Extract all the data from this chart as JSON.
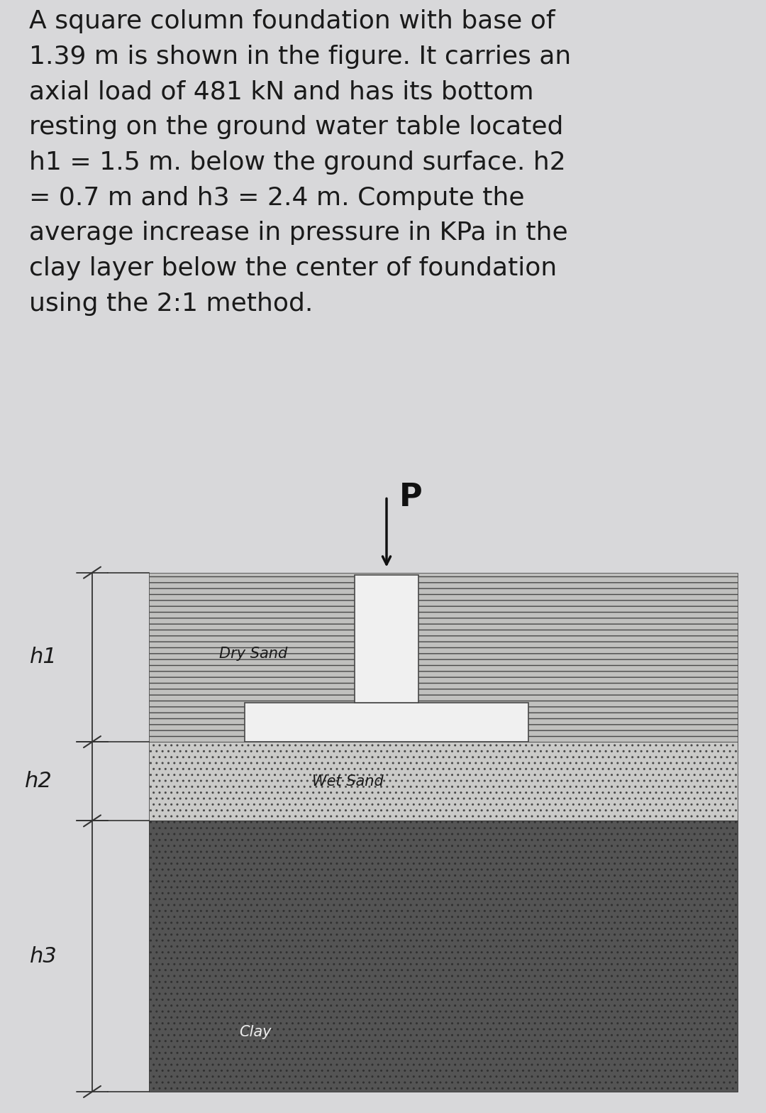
{
  "problem_text": "A square column foundation with base of\n1.39 m is shown in the figure. It carries an\naxial load of 481 kN and has its bottom\nresting on the ground water table located\nh1 = 1.5 m. below the ground surface. h2\n= 0.7 m and h3 = 2.4 m. Compute the\naverage increase in pressure in KPa in the\nclay layer below the center of foundation\nusing the 2:1 method.",
  "bg_color": "#d8d8da",
  "text_color": "#1a1a1a",
  "text_fontsize": 26,
  "dry_sand_facecolor": "#c0c0be",
  "wet_sand_facecolor": "#cacac8",
  "clay_facecolor": "#545454",
  "foundation_facecolor": "#f0f0f0",
  "border_color": "#484848",
  "h1_label": "h1",
  "h2_label": "h2",
  "h3_label": "h3",
  "P_label": "P",
  "dry_sand_label": "Dry Sand",
  "wet_sand_label": "Wet Sand",
  "clay_label": "Clay",
  "fig_width": 10.8,
  "fig_height": 15.68,
  "dpi": 100
}
